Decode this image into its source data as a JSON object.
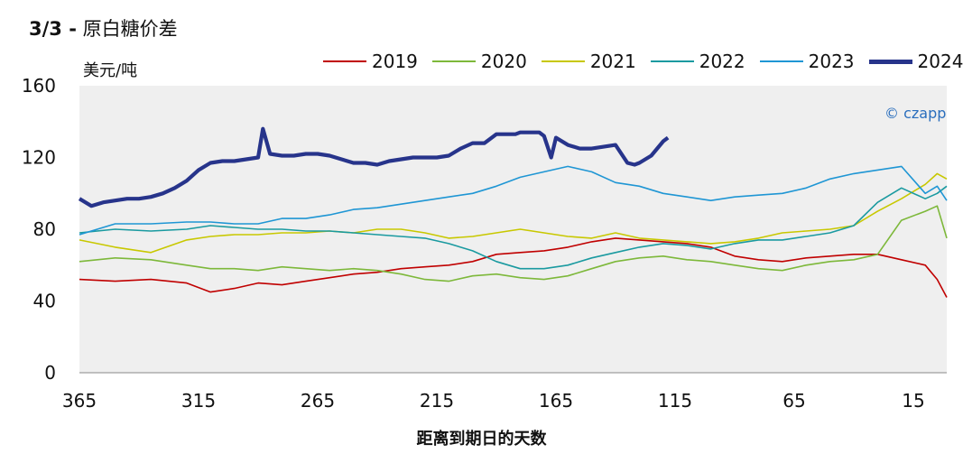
{
  "header": {
    "title_num": "3/3 -",
    "title_text": "原白糖价差"
  },
  "logo": {
    "text": "© czapp"
  },
  "chart_data": {
    "type": "line",
    "title": "3/3 - 原白糖价差",
    "ylabel": "美元/吨",
    "xlabel": "距离到期日的天数",
    "xlim": [
      365,
      1
    ],
    "ylim": [
      0,
      160
    ],
    "x_ticks": [
      "365",
      "315",
      "265",
      "215",
      "165",
      "115",
      "65",
      "15"
    ],
    "x_tick_values": [
      365,
      315,
      265,
      215,
      165,
      115,
      65,
      15
    ],
    "y_ticks": [
      "0",
      "40",
      "80",
      "120",
      "160"
    ],
    "y_tick_values": [
      0,
      40,
      80,
      120,
      160
    ],
    "grid": false,
    "legend_position": "top",
    "series": [
      {
        "name": "2019",
        "color": "#c00000",
        "width": 1.6,
        "x": [
          365,
          350,
          335,
          320,
          310,
          300,
          290,
          280,
          270,
          260,
          250,
          240,
          230,
          220,
          210,
          200,
          190,
          180,
          170,
          160,
          150,
          140,
          130,
          120,
          110,
          100,
          90,
          80,
          70,
          60,
          50,
          40,
          30,
          20,
          10,
          5,
          1
        ],
        "y": [
          52,
          51,
          52,
          50,
          45,
          47,
          50,
          49,
          51,
          53,
          55,
          56,
          58,
          59,
          60,
          62,
          66,
          67,
          68,
          70,
          73,
          75,
          74,
          73,
          72,
          70,
          65,
          63,
          62,
          64,
          65,
          66,
          66,
          63,
          60,
          52,
          42
        ]
      },
      {
        "name": "2020",
        "color": "#7db83a",
        "width": 1.6,
        "x": [
          365,
          350,
          335,
          320,
          310,
          300,
          290,
          280,
          270,
          260,
          250,
          240,
          230,
          220,
          210,
          200,
          190,
          180,
          170,
          160,
          150,
          140,
          130,
          120,
          110,
          100,
          90,
          80,
          70,
          60,
          50,
          40,
          30,
          20,
          10,
          5,
          1
        ],
        "y": [
          62,
          64,
          63,
          60,
          58,
          58,
          57,
          59,
          58,
          57,
          58,
          57,
          55,
          52,
          51,
          54,
          55,
          53,
          52,
          54,
          58,
          62,
          64,
          65,
          63,
          62,
          60,
          58,
          57,
          60,
          62,
          63,
          66,
          85,
          90,
          93,
          75
        ]
      },
      {
        "name": "2021",
        "color": "#c8c800",
        "width": 1.6,
        "x": [
          365,
          350,
          335,
          320,
          310,
          300,
          290,
          280,
          270,
          260,
          250,
          240,
          230,
          220,
          210,
          200,
          190,
          180,
          170,
          160,
          150,
          140,
          130,
          120,
          110,
          100,
          90,
          80,
          70,
          60,
          50,
          40,
          30,
          20,
          10,
          5,
          1
        ],
        "y": [
          74,
          70,
          67,
          74,
          76,
          77,
          77,
          78,
          78,
          79,
          78,
          80,
          80,
          78,
          75,
          76,
          78,
          80,
          78,
          76,
          75,
          78,
          75,
          74,
          73,
          72,
          73,
          75,
          78,
          79,
          80,
          82,
          90,
          97,
          105,
          111,
          108
        ]
      },
      {
        "name": "2022",
        "color": "#1a9aa0",
        "width": 1.6,
        "x": [
          365,
          350,
          335,
          320,
          310,
          300,
          290,
          280,
          270,
          260,
          250,
          240,
          230,
          220,
          210,
          200,
          190,
          180,
          170,
          160,
          150,
          140,
          130,
          120,
          110,
          100,
          90,
          80,
          70,
          60,
          50,
          40,
          30,
          20,
          10,
          5,
          1
        ],
        "y": [
          78,
          80,
          79,
          80,
          82,
          81,
          80,
          80,
          79,
          79,
          78,
          77,
          76,
          75,
          72,
          68,
          62,
          58,
          58,
          60,
          64,
          67,
          70,
          72,
          71,
          69,
          72,
          74,
          74,
          76,
          78,
          82,
          95,
          103,
          97,
          100,
          104
        ]
      },
      {
        "name": "2023",
        "color": "#1f96d4",
        "width": 1.6,
        "x": [
          365,
          350,
          335,
          320,
          310,
          300,
          290,
          280,
          270,
          260,
          250,
          240,
          230,
          220,
          210,
          200,
          190,
          180,
          170,
          160,
          150,
          140,
          130,
          120,
          110,
          100,
          90,
          80,
          70,
          60,
          50,
          40,
          30,
          20,
          10,
          5,
          1
        ],
        "y": [
          77,
          83,
          83,
          84,
          84,
          83,
          83,
          86,
          86,
          88,
          91,
          92,
          94,
          96,
          98,
          100,
          104,
          109,
          112,
          115,
          112,
          106,
          104,
          100,
          98,
          96,
          98,
          99,
          100,
          103,
          108,
          111,
          113,
          115,
          100,
          104,
          96
        ]
      },
      {
        "name": "2024",
        "color": "#27348b",
        "width": 4.2,
        "x": [
          365,
          360,
          355,
          350,
          345,
          340,
          335,
          330,
          325,
          320,
          315,
          310,
          305,
          300,
          295,
          290,
          288,
          285,
          280,
          275,
          270,
          265,
          260,
          255,
          250,
          245,
          240,
          235,
          230,
          225,
          220,
          215,
          210,
          205,
          200,
          195,
          190,
          185,
          182,
          180,
          175,
          172,
          170,
          167,
          165,
          160,
          155,
          150,
          145,
          140,
          135,
          132,
          130,
          125,
          120,
          118
        ],
        "y": [
          97,
          93,
          95,
          96,
          97,
          97,
          98,
          100,
          103,
          107,
          113,
          117,
          118,
          118,
          119,
          120,
          136,
          122,
          121,
          121,
          122,
          122,
          121,
          119,
          117,
          117,
          116,
          118,
          119,
          120,
          120,
          120,
          121,
          125,
          128,
          128,
          133,
          133,
          133,
          134,
          134,
          134,
          132,
          120,
          131,
          127,
          125,
          125,
          126,
          127,
          117,
          116,
          117,
          121,
          129,
          131
        ]
      }
    ]
  }
}
